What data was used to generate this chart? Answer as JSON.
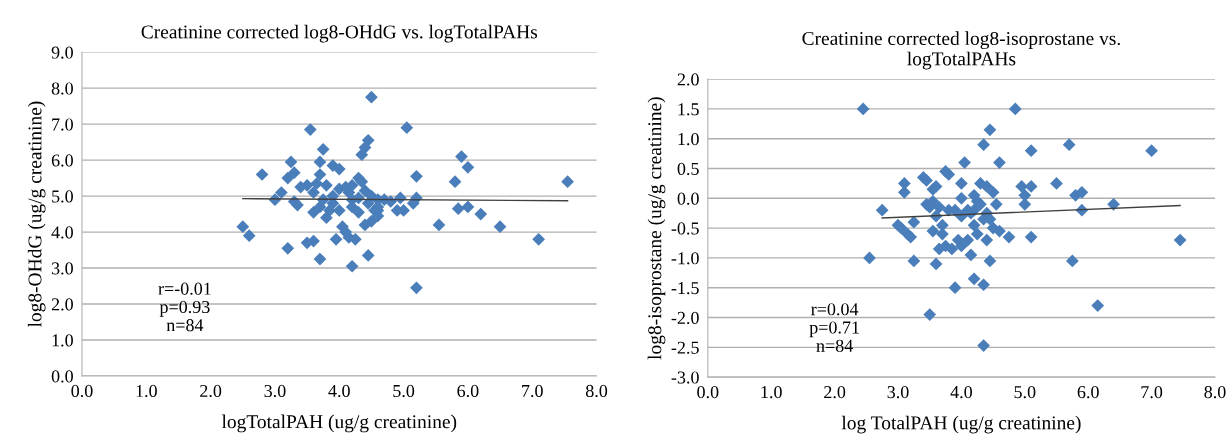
{
  "chart_data": [
    {
      "type": "scatter",
      "title": "Creatinine corrected log8-OHdG vs. logTotalPAHs",
      "xlabel": "logTotalPAH (ug/g creatinine)",
      "ylabel": "log8-OHdG (ug/g creatinine)",
      "xlim": [
        0,
        8
      ],
      "ylim": [
        0,
        9
      ],
      "xticks": [
        {
          "value": 0,
          "label": "0.0"
        },
        {
          "value": 1,
          "label": "1.0"
        },
        {
          "value": 2,
          "label": "2.0"
        },
        {
          "value": 3,
          "label": "3.0"
        },
        {
          "value": 4,
          "label": "4.0"
        },
        {
          "value": 5,
          "label": "5.0"
        },
        {
          "value": 6,
          "label": "6.0"
        },
        {
          "value": 7,
          "label": "7.0"
        },
        {
          "value": 8,
          "label": "8.0"
        }
      ],
      "yticks": [
        {
          "value": 0,
          "label": "0.0"
        },
        {
          "value": 1,
          "label": "1.0"
        },
        {
          "value": 2,
          "label": "2.0"
        },
        {
          "value": 3,
          "label": "3.0"
        },
        {
          "value": 4,
          "label": "4.0"
        },
        {
          "value": 5,
          "label": "5.0"
        },
        {
          "value": 6,
          "label": "6.0"
        },
        {
          "value": 7,
          "label": "7.0"
        },
        {
          "value": 8,
          "label": "8.0"
        },
        {
          "value": 9,
          "label": "9.0"
        }
      ],
      "grid": "y",
      "annotations": [
        "r=-0.01\np=0.93\nn=84"
      ],
      "series": [
        {
          "marker": "diamond",
          "color": "#4a7ebb",
          "x": [
            2.5,
            2.6,
            2.8,
            3.0,
            3.1,
            3.2,
            3.2,
            3.25,
            3.3,
            3.3,
            3.35,
            3.4,
            3.5,
            3.55,
            3.6,
            3.6,
            3.6,
            3.65,
            3.7,
            3.7,
            3.7,
            3.75,
            3.7,
            3.75,
            3.8,
            3.8,
            3.85,
            3.9,
            3.9,
            3.95,
            4.0,
            4.0,
            4.05,
            4.1,
            4.1,
            4.15,
            4.15,
            4.2,
            4.2,
            4.2,
            4.25,
            4.3,
            4.3,
            4.3,
            4.35,
            4.35,
            4.4,
            4.4,
            4.4,
            4.45,
            4.45,
            4.45,
            4.5,
            4.5,
            4.5,
            4.55,
            4.6,
            4.6,
            4.7,
            4.8,
            4.9,
            4.95,
            5.05,
            5.0,
            5.15,
            5.2,
            5.2,
            5.2,
            5.55,
            5.8,
            5.85,
            5.9,
            6.0,
            6.0,
            6.2,
            6.5,
            7.1,
            7.55,
            4.0,
            3.5,
            4.6,
            4.2,
            3.9,
            4.6
          ],
          "values": [
            4.15,
            3.9,
            5.6,
            4.9,
            5.1,
            3.55,
            5.5,
            5.95,
            5.65,
            4.85,
            4.75,
            5.25,
            3.7,
            6.85,
            3.75,
            4.55,
            5.1,
            5.35,
            3.25,
            5.6,
            5.95,
            6.3,
            4.7,
            4.9,
            5.3,
            4.4,
            4.6,
            5.0,
            5.85,
            3.8,
            4.6,
            5.75,
            4.15,
            4.0,
            5.25,
            3.85,
            5.1,
            3.05,
            4.7,
            5.3,
            3.8,
            4.55,
            5.5,
            4.95,
            5.4,
            6.15,
            6.35,
            4.2,
            5.15,
            6.55,
            4.8,
            3.35,
            7.75,
            4.3,
            5.0,
            4.6,
            4.9,
            4.45,
            4.9,
            4.85,
            4.6,
            4.95,
            6.9,
            4.6,
            4.8,
            4.95,
            5.55,
            2.45,
            4.2,
            5.4,
            4.65,
            6.1,
            4.7,
            5.8,
            4.5,
            4.15,
            3.8,
            5.4,
            5.2,
            5.3,
            4.6,
            4.9,
            4.8,
            4.7
          ]
        },
        {
          "type": "line",
          "marker": "none",
          "color": "#404040",
          "x": [
            2.5,
            7.55
          ],
          "values": [
            4.93,
            4.87
          ]
        }
      ]
    },
    {
      "type": "scatter",
      "title": "Creatinine corrected log8-isoprostane vs.\nlogTotalPAHs",
      "xlabel": "log TotalPAH (ug/g creatinine)",
      "ylabel": "log8-isoprostane (ug/g creatinine)",
      "xlim": [
        0,
        8
      ],
      "ylim": [
        -3,
        2
      ],
      "xticks": [
        {
          "value": 0,
          "label": "0.0"
        },
        {
          "value": 1,
          "label": "1.0"
        },
        {
          "value": 2,
          "label": "2.0"
        },
        {
          "value": 3,
          "label": "3.0"
        },
        {
          "value": 4,
          "label": "4.0"
        },
        {
          "value": 5,
          "label": "5.0"
        },
        {
          "value": 6,
          "label": "6.0"
        },
        {
          "value": 7,
          "label": "7.0"
        },
        {
          "value": 8,
          "label": "8.0"
        }
      ],
      "yticks": [
        {
          "value": -3,
          "label": "-3.0"
        },
        {
          "value": -2.5,
          "label": "-2.5"
        },
        {
          "value": -2,
          "label": "-2.0"
        },
        {
          "value": -1.5,
          "label": "-1.5"
        },
        {
          "value": -1,
          "label": "-1.0"
        },
        {
          "value": -0.5,
          "label": "-0.5"
        },
        {
          "value": 0,
          "label": "0.0"
        },
        {
          "value": 0.5,
          "label": "0.5"
        },
        {
          "value": 1,
          "label": "1.0"
        },
        {
          "value": 1.5,
          "label": "1.5"
        },
        {
          "value": 2,
          "label": "2.0"
        }
      ],
      "grid": "y",
      "annotations": [
        "r=0.04\np=0.71\nn=84"
      ],
      "series": [
        {
          "marker": "diamond",
          "color": "#4a7ebb",
          "x": [
            2.45,
            2.55,
            2.75,
            3.0,
            3.05,
            3.1,
            3.1,
            3.15,
            3.2,
            3.25,
            3.25,
            3.4,
            3.45,
            3.5,
            3.5,
            3.55,
            3.55,
            3.6,
            3.6,
            3.6,
            3.65,
            3.65,
            3.7,
            3.75,
            3.75,
            3.8,
            3.85,
            3.9,
            3.9,
            4.0,
            4.0,
            4.0,
            4.05,
            4.1,
            4.1,
            4.15,
            4.15,
            4.2,
            4.2,
            4.25,
            4.3,
            4.35,
            4.35,
            4.35,
            4.35,
            4.4,
            4.4,
            4.45,
            4.45,
            4.5,
            4.55,
            4.6,
            4.6,
            4.75,
            4.85,
            4.95,
            5.0,
            5.1,
            5.1,
            5.1,
            5.5,
            5.7,
            5.75,
            5.8,
            5.9,
            5.9,
            6.15,
            6.4,
            7.0,
            7.45,
            4.2,
            4.3,
            3.7,
            4.4,
            3.45,
            4.25,
            3.8,
            4.0,
            4.45,
            3.55,
            4.2,
            3.95,
            4.5,
            5.0
          ],
          "values": [
            1.5,
            -1.0,
            -0.2,
            -0.45,
            -0.5,
            0.1,
            0.25,
            -0.6,
            -0.65,
            -1.05,
            -0.4,
            0.35,
            0.3,
            -0.15,
            -1.95,
            -0.55,
            -0.05,
            -1.1,
            -0.3,
            0.2,
            -0.85,
            -0.15,
            -0.6,
            0.45,
            -0.8,
            0.4,
            -0.85,
            -1.5,
            -0.2,
            -0.8,
            0.25,
            -0.3,
            0.6,
            -0.2,
            -0.7,
            -0.95,
            -0.25,
            -1.35,
            0.05,
            -0.05,
            0.25,
            0.9,
            -0.35,
            -1.45,
            -2.47,
            0.2,
            -0.7,
            1.15,
            -1.05,
            -0.5,
            -0.1,
            0.6,
            -0.55,
            -0.65,
            1.5,
            0.2,
            -0.1,
            0.8,
            -0.65,
            0.2,
            0.25,
            0.9,
            -1.05,
            0.05,
            0.1,
            -0.2,
            -1.8,
            -0.1,
            0.8,
            -0.7,
            -0.2,
            -0.1,
            -0.45,
            -0.25,
            -0.1,
            -0.6,
            -0.2,
            0.0,
            -0.35,
            0.15,
            -0.45,
            -0.7,
            0.1,
            0.05
          ]
        },
        {
          "type": "line",
          "marker": "none",
          "color": "#404040",
          "x": [
            2.75,
            7.45
          ],
          "values": [
            -0.33,
            -0.12
          ]
        }
      ]
    }
  ]
}
